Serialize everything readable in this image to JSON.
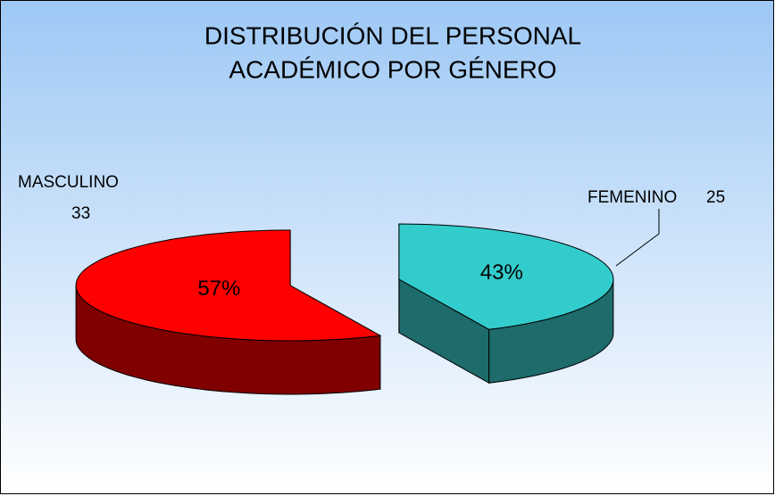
{
  "chart_data": {
    "type": "pie3d",
    "title": [
      "DISTRIBUCIÓN DEL PERSONAL",
      "ACADÉMICO POR GÉNERO"
    ],
    "categories": [
      "MASCULINO",
      "FEMENINO"
    ],
    "values": [
      33,
      25
    ],
    "percent_labels": [
      "57%",
      "43%"
    ],
    "colors": [
      "#ff0000",
      "#33cccc"
    ],
    "side_colors": [
      "#800000",
      "#1d6b6b"
    ]
  }
}
